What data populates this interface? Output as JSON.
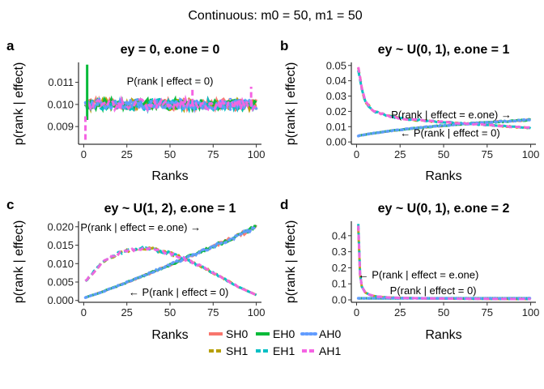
{
  "figure": {
    "title": "Continuous: m0 = 50, m1 = 50"
  },
  "legend": {
    "entries": [
      {
        "key": "SH0",
        "label": "SH0",
        "color": "#F8766D",
        "style": "solid"
      },
      {
        "key": "SH1",
        "label": "SH1",
        "color": "#B79F00",
        "style": "dashed"
      },
      {
        "key": "EH0",
        "label": "EH0",
        "color": "#00BA38",
        "style": "solid"
      },
      {
        "key": "EH1",
        "label": "EH1",
        "color": "#00BFC4",
        "style": "dashed"
      },
      {
        "key": "AH0",
        "label": "AH0",
        "color": "#619CFF",
        "style": "dotted"
      },
      {
        "key": "AH1",
        "label": "AH1",
        "color": "#F564E3",
        "style": "dashed"
      }
    ]
  },
  "chart_data": [
    {
      "type": "line",
      "panel_letter": "a",
      "title": "ey = 0, e.one = 0",
      "xlabel": "Ranks",
      "ylabel": "p(rank | effect)",
      "xlim": [
        -3,
        103
      ],
      "ylim": [
        0.0082,
        0.0119
      ],
      "xticks": [
        0,
        25,
        50,
        75,
        100
      ],
      "yticks": [
        0.009,
        0.01,
        0.011
      ],
      "ytick_labels": [
        "0.009",
        "0.010",
        "0.011"
      ],
      "annotations": [
        {
          "text": "P(rank | effect = 0)",
          "x": 50,
          "y": 0.0109,
          "anchor": "middle"
        }
      ],
      "series_model": {
        "kind": "flat_noise",
        "level": 0.01,
        "noise": 0.00025,
        "spikes": [
          {
            "series": "EH0",
            "x": 2,
            "y_from": 0.0093,
            "y_to": 0.0118
          },
          {
            "series": "AH1",
            "x": 1,
            "y_from": 0.0084,
            "y_to": 0.0096
          },
          {
            "series": "AH1",
            "x": 63,
            "y_from": 0.01,
            "y_to": 0.0107
          },
          {
            "series": "AH0",
            "x": 85,
            "y_from": 0.01,
            "y_to": 0.0104
          },
          {
            "series": "AH1",
            "x": 97,
            "y_from": 0.0099,
            "y_to": 0.0108
          }
        ]
      },
      "series": [
        {
          "name": "SH0",
          "curve": "flat"
        },
        {
          "name": "SH1",
          "curve": "flat"
        },
        {
          "name": "EH0",
          "curve": "flat"
        },
        {
          "name": "EH1",
          "curve": "flat"
        },
        {
          "name": "AH0",
          "curve": "flat"
        },
        {
          "name": "AH1",
          "curve": "flat"
        }
      ]
    },
    {
      "type": "line",
      "panel_letter": "b",
      "title": "ey ~ U(0, 1), e.one = 1",
      "xlabel": "Ranks",
      "ylabel": "p(rank | effect)",
      "xlim": [
        -3,
        103
      ],
      "ylim": [
        -0.0015,
        0.052
      ],
      "xticks": [
        0,
        25,
        50,
        75,
        100
      ],
      "yticks": [
        0.0,
        0.01,
        0.02,
        0.03,
        0.04,
        0.05
      ],
      "ytick_labels": [
        "0.00",
        "0.01",
        "0.02",
        "0.03",
        "0.04",
        "0.05"
      ],
      "annotations": [
        {
          "text": "P(rank | effect = e.one) →",
          "x": 89,
          "y": 0.0155,
          "anchor": "end"
        },
        {
          "text": "← P(rank | effect = 0)",
          "x": 25,
          "y": 0.0035,
          "anchor": "start"
        }
      ],
      "curves": {
        "one": {
          "x": [
            1,
            3,
            5,
            10,
            20,
            30,
            40,
            50,
            60,
            70,
            80,
            90,
            100
          ],
          "y": [
            0.048,
            0.035,
            0.026,
            0.02,
            0.0165,
            0.0148,
            0.0138,
            0.013,
            0.0122,
            0.0115,
            0.0107,
            0.0099,
            0.0092
          ]
        },
        "zero": {
          "x": [
            1,
            10,
            20,
            30,
            40,
            50,
            60,
            70,
            80,
            90,
            100
          ],
          "y": [
            0.004,
            0.0058,
            0.0073,
            0.0086,
            0.0097,
            0.0107,
            0.0116,
            0.0124,
            0.0131,
            0.0138,
            0.0145
          ]
        }
      },
      "series": [
        {
          "name": "SH0",
          "curve": "zero"
        },
        {
          "name": "SH1",
          "curve": "one"
        },
        {
          "name": "EH0",
          "curve": "zero"
        },
        {
          "name": "EH1",
          "curve": "one"
        },
        {
          "name": "AH0",
          "curve": "zero"
        },
        {
          "name": "AH1",
          "curve": "one"
        }
      ]
    },
    {
      "type": "line",
      "panel_letter": "c",
      "title": "ey ~ U(1, 2), e.one = 1",
      "xlabel": "Ranks",
      "ylabel": "p(rank | effect)",
      "xlim": [
        -3,
        103
      ],
      "ylim": [
        -0.0005,
        0.0215
      ],
      "xticks": [
        0,
        25,
        50,
        75,
        100
      ],
      "yticks": [
        0.0,
        0.005,
        0.01,
        0.015,
        0.02
      ],
      "ytick_labels": [
        "0.000",
        "0.005",
        "0.010",
        "0.015",
        "0.020"
      ],
      "annotations": [
        {
          "text": "P(rank | effect = e.one) →",
          "x": 33,
          "y": 0.0189,
          "anchor": "middle"
        },
        {
          "text": "← P(rank | effect = 0)",
          "x": 55,
          "y": 0.0013,
          "anchor": "middle"
        }
      ],
      "curves": {
        "one": {
          "x": [
            1,
            10,
            20,
            30,
            35,
            40,
            50,
            60,
            70,
            80,
            90,
            100
          ],
          "y": [
            0.0052,
            0.01,
            0.0128,
            0.014,
            0.0141,
            0.0139,
            0.0128,
            0.011,
            0.0088,
            0.0062,
            0.0036,
            0.0015
          ]
        },
        "zero": {
          "x": [
            1,
            10,
            20,
            30,
            40,
            50,
            60,
            70,
            80,
            90,
            100
          ],
          "y": [
            0.0008,
            0.0022,
            0.004,
            0.0058,
            0.0077,
            0.0097,
            0.0117,
            0.0137,
            0.0157,
            0.0176,
            0.02
          ]
        }
      },
      "series": [
        {
          "name": "SH0",
          "curve": "zero"
        },
        {
          "name": "SH1",
          "curve": "one"
        },
        {
          "name": "EH0",
          "curve": "zero"
        },
        {
          "name": "EH1",
          "curve": "one"
        },
        {
          "name": "AH0",
          "curve": "zero"
        },
        {
          "name": "AH1",
          "curve": "one"
        }
      ]
    },
    {
      "type": "line",
      "panel_letter": "d",
      "title": "ey ~ U(0, 1), e.one = 2",
      "xlabel": "Ranks",
      "ylabel": "p(rank | effect)",
      "xlim": [
        -3,
        103
      ],
      "ylim": [
        -0.015,
        0.49
      ],
      "xticks": [
        0,
        25,
        50,
        75,
        100
      ],
      "yticks": [
        0.0,
        0.1,
        0.2,
        0.3,
        0.4
      ],
      "ytick_labels": [
        "0.0",
        "0.1",
        "0.2",
        "0.3",
        "0.4"
      ],
      "annotations": [
        {
          "text": "← P(rank | effect = e.one)",
          "x": 1,
          "y": 0.135,
          "anchor": "start"
        },
        {
          "text": "P(rank | effect = 0)",
          "x": 44,
          "y": 0.035,
          "anchor": "middle"
        }
      ],
      "curves": {
        "one": {
          "x": [
            1,
            2,
            3,
            5,
            8,
            12,
            20,
            30,
            50,
            75,
            100
          ],
          "y": [
            0.46,
            0.16,
            0.085,
            0.045,
            0.03,
            0.02,
            0.014,
            0.011,
            0.008,
            0.006,
            0.005
          ]
        },
        "zero": {
          "x": [
            1,
            25,
            50,
            75,
            100
          ],
          "y": [
            0.01,
            0.01,
            0.01,
            0.01,
            0.01
          ]
        }
      },
      "series": [
        {
          "name": "SH0",
          "curve": "zero"
        },
        {
          "name": "SH1",
          "curve": "one"
        },
        {
          "name": "EH0",
          "curve": "zero"
        },
        {
          "name": "EH1",
          "curve": "one"
        },
        {
          "name": "AH0",
          "curve": "zero"
        },
        {
          "name": "AH1",
          "curve": "one"
        }
      ]
    }
  ]
}
